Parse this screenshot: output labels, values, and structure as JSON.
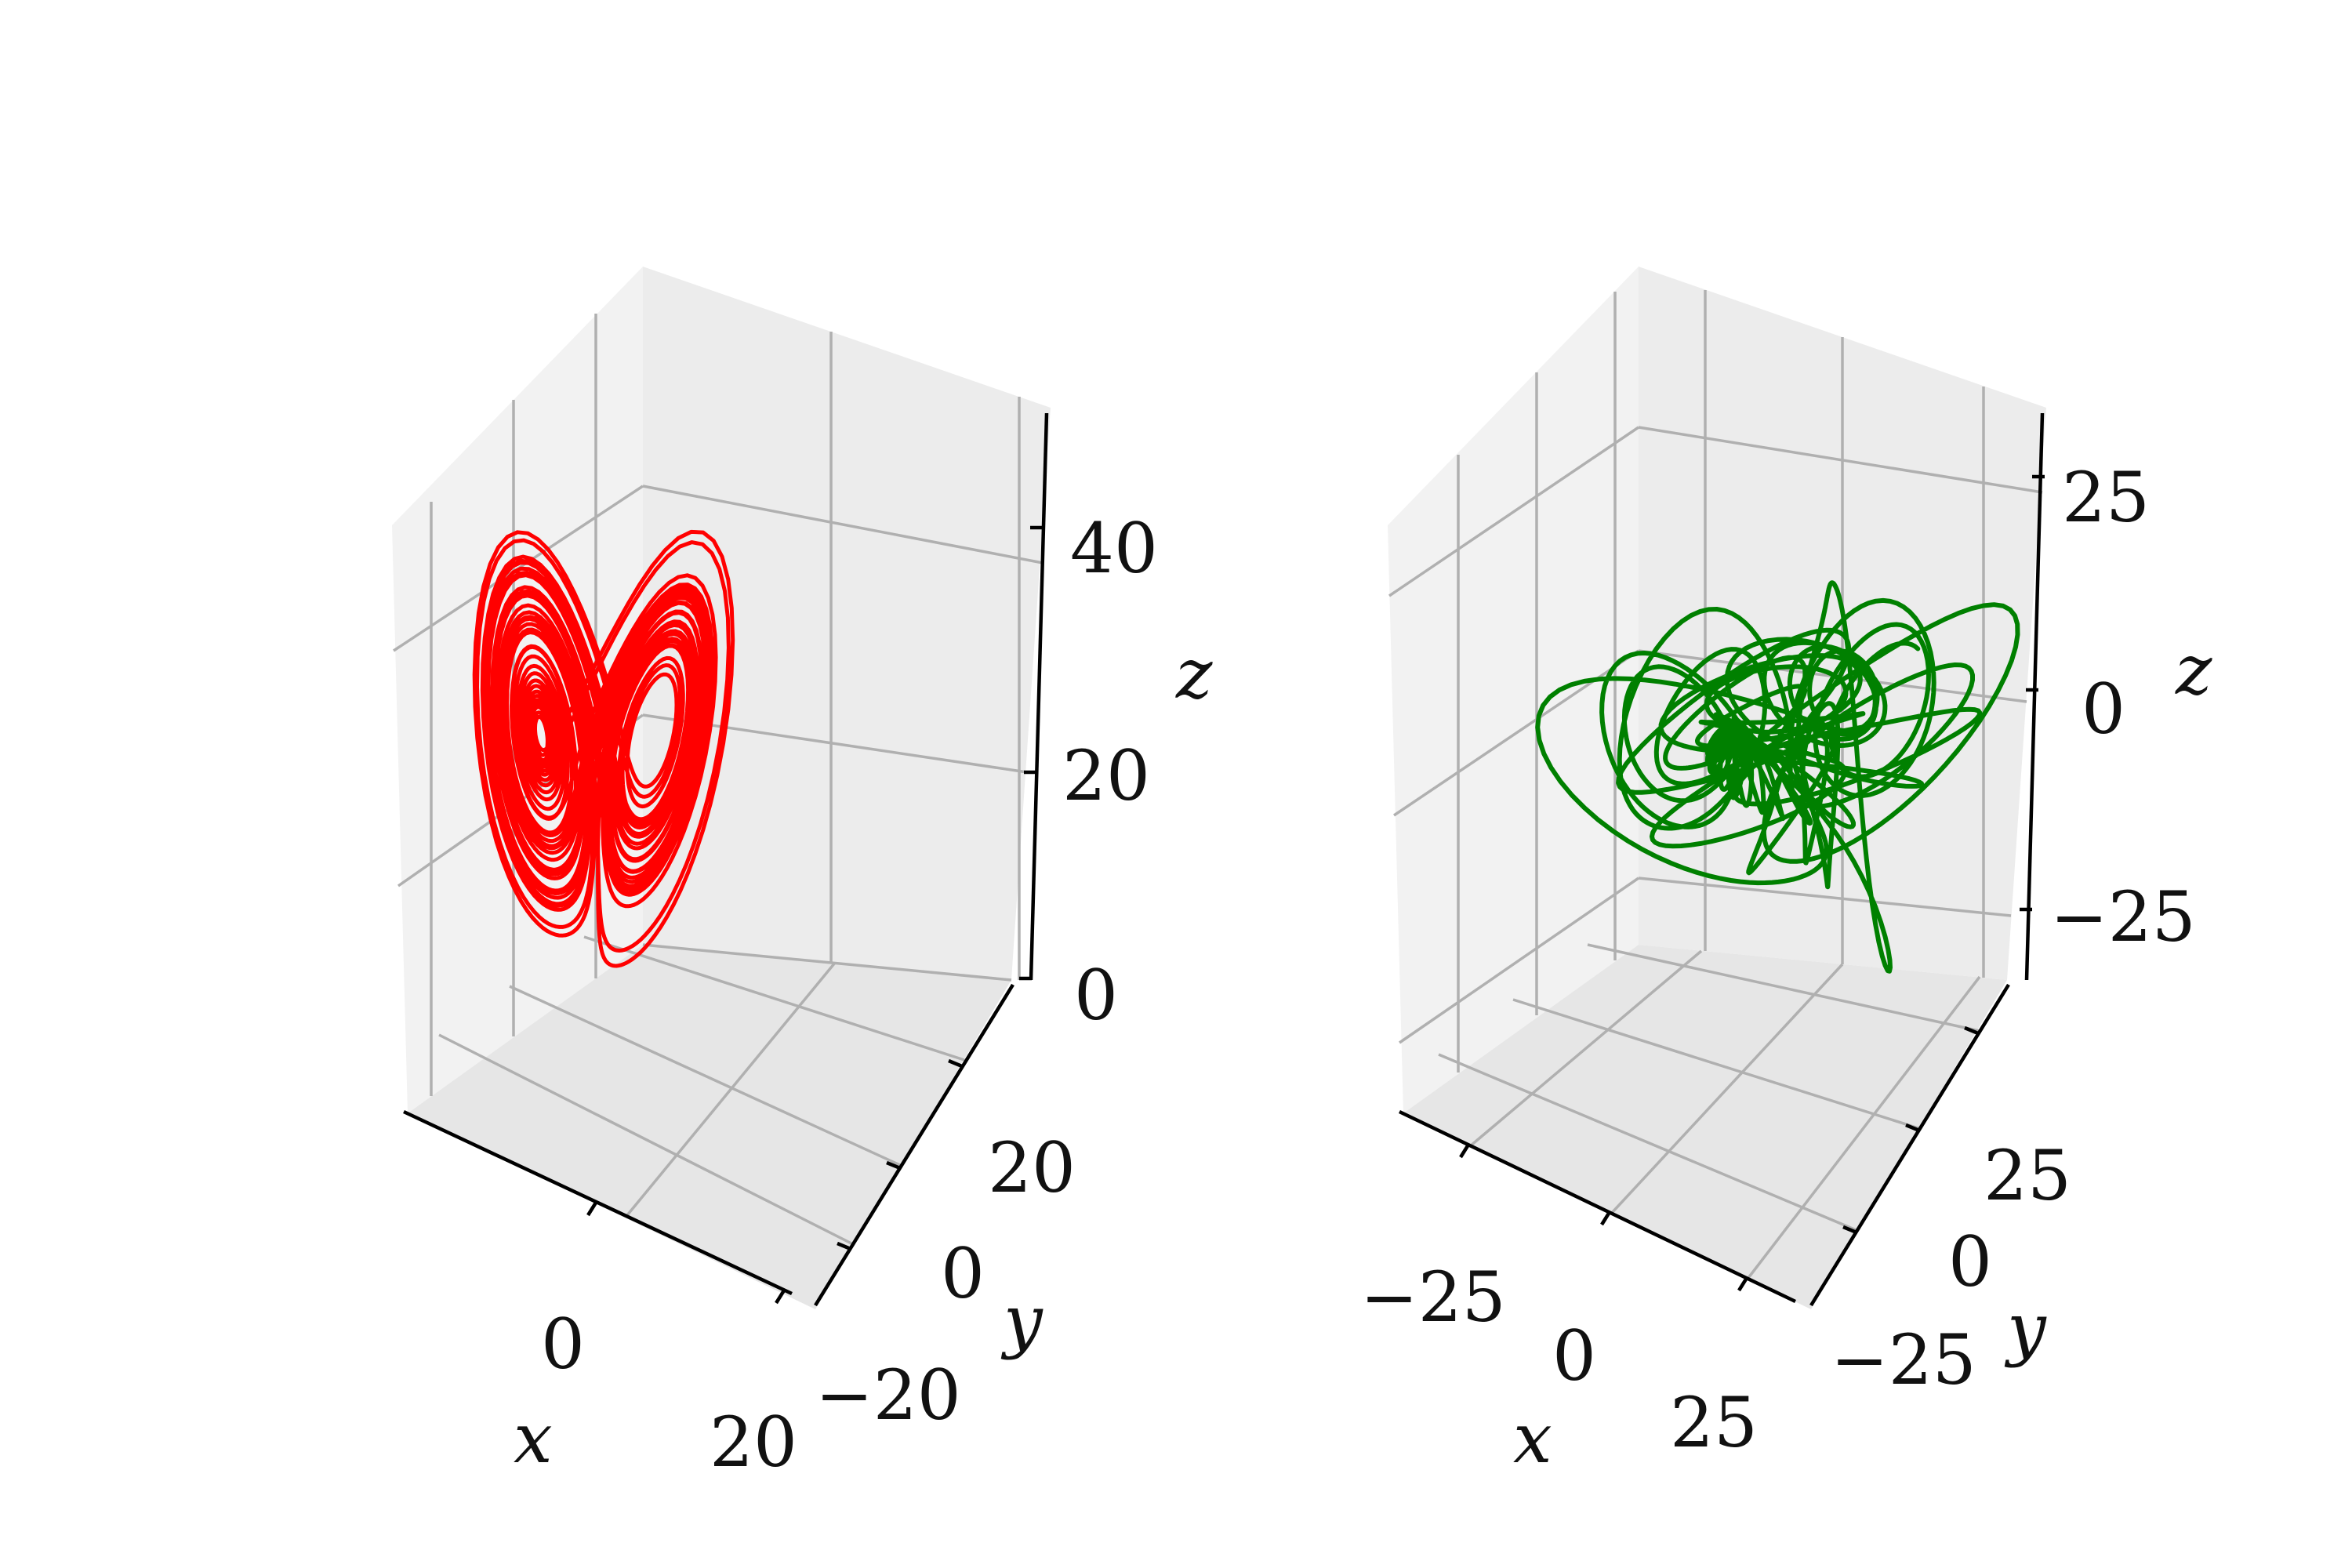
{
  "colors": {
    "pane_left": "#f2f2f2",
    "pane_right": "#ececec",
    "pane_floor": "#e6e6e6",
    "grid": "#b0b0b0",
    "axis": "#000000",
    "lorenz": "#ff0000",
    "noisy": "#008000"
  },
  "chart_data": [
    {
      "type": "line",
      "projection": "3d",
      "series": [
        {
          "color": "#ff0000"
        }
      ],
      "shape": "Lorenz butterfly attractor trajectory",
      "xlabel": "x",
      "ylabel": "y",
      "zlabel": "z",
      "xlim": [
        -22,
        22
      ],
      "ylim": [
        -28,
        30
      ],
      "zlim": [
        0,
        50
      ],
      "xticks": [
        "0",
        "20"
      ],
      "yticks": [
        "−20",
        "0",
        "20"
      ],
      "zticks": [
        "0",
        "20",
        "40"
      ],
      "grid": true
    },
    {
      "type": "line",
      "projection": "3d",
      "series": [
        {
          "color": "#008000"
        }
      ],
      "shape": "tangled chaotic trajectory",
      "xlabel": "x",
      "ylabel": "y",
      "zlabel": "z",
      "xlim": [
        -45,
        45
      ],
      "ylim": [
        -45,
        45
      ],
      "zlim": [
        -38,
        38
      ],
      "xticks": [
        "−25",
        "0",
        "25"
      ],
      "yticks": [
        "−25",
        "0",
        "25"
      ],
      "zticks": [
        "−25",
        "0",
        "25"
      ],
      "grid": true
    }
  ]
}
